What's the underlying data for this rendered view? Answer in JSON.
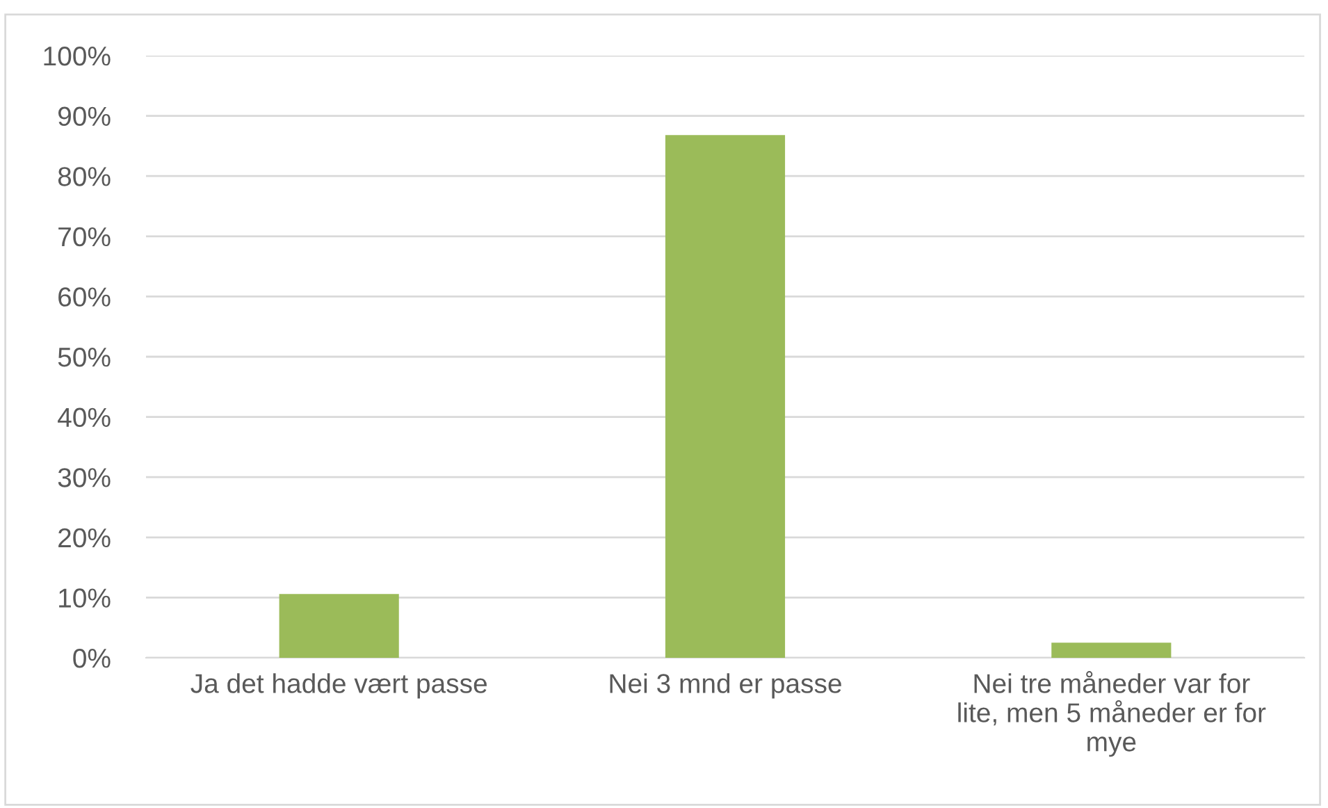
{
  "chart_data": {
    "type": "bar",
    "categories": [
      "Ja det hadde vært passe",
      "Nei 3 mnd er passe",
      "Nei tre måneder var for lite, men 5 måneder er for mye"
    ],
    "values": [
      10.6,
      86.8,
      2.5
    ],
    "color": "#9bbb59",
    "ylim": [
      0,
      100
    ],
    "yticks": [
      {
        "value": 0,
        "label": "0%"
      },
      {
        "value": 10,
        "label": "10%"
      },
      {
        "value": 20,
        "label": "20%"
      },
      {
        "value": 30,
        "label": "30%"
      },
      {
        "value": 40,
        "label": "40%"
      },
      {
        "value": 50,
        "label": "50%"
      },
      {
        "value": 60,
        "label": "60%"
      },
      {
        "value": 70,
        "label": "70%"
      },
      {
        "value": 80,
        "label": "80%"
      },
      {
        "value": 90,
        "label": "90%"
      },
      {
        "value": 100,
        "label": "100%"
      }
    ],
    "grid": "y"
  }
}
